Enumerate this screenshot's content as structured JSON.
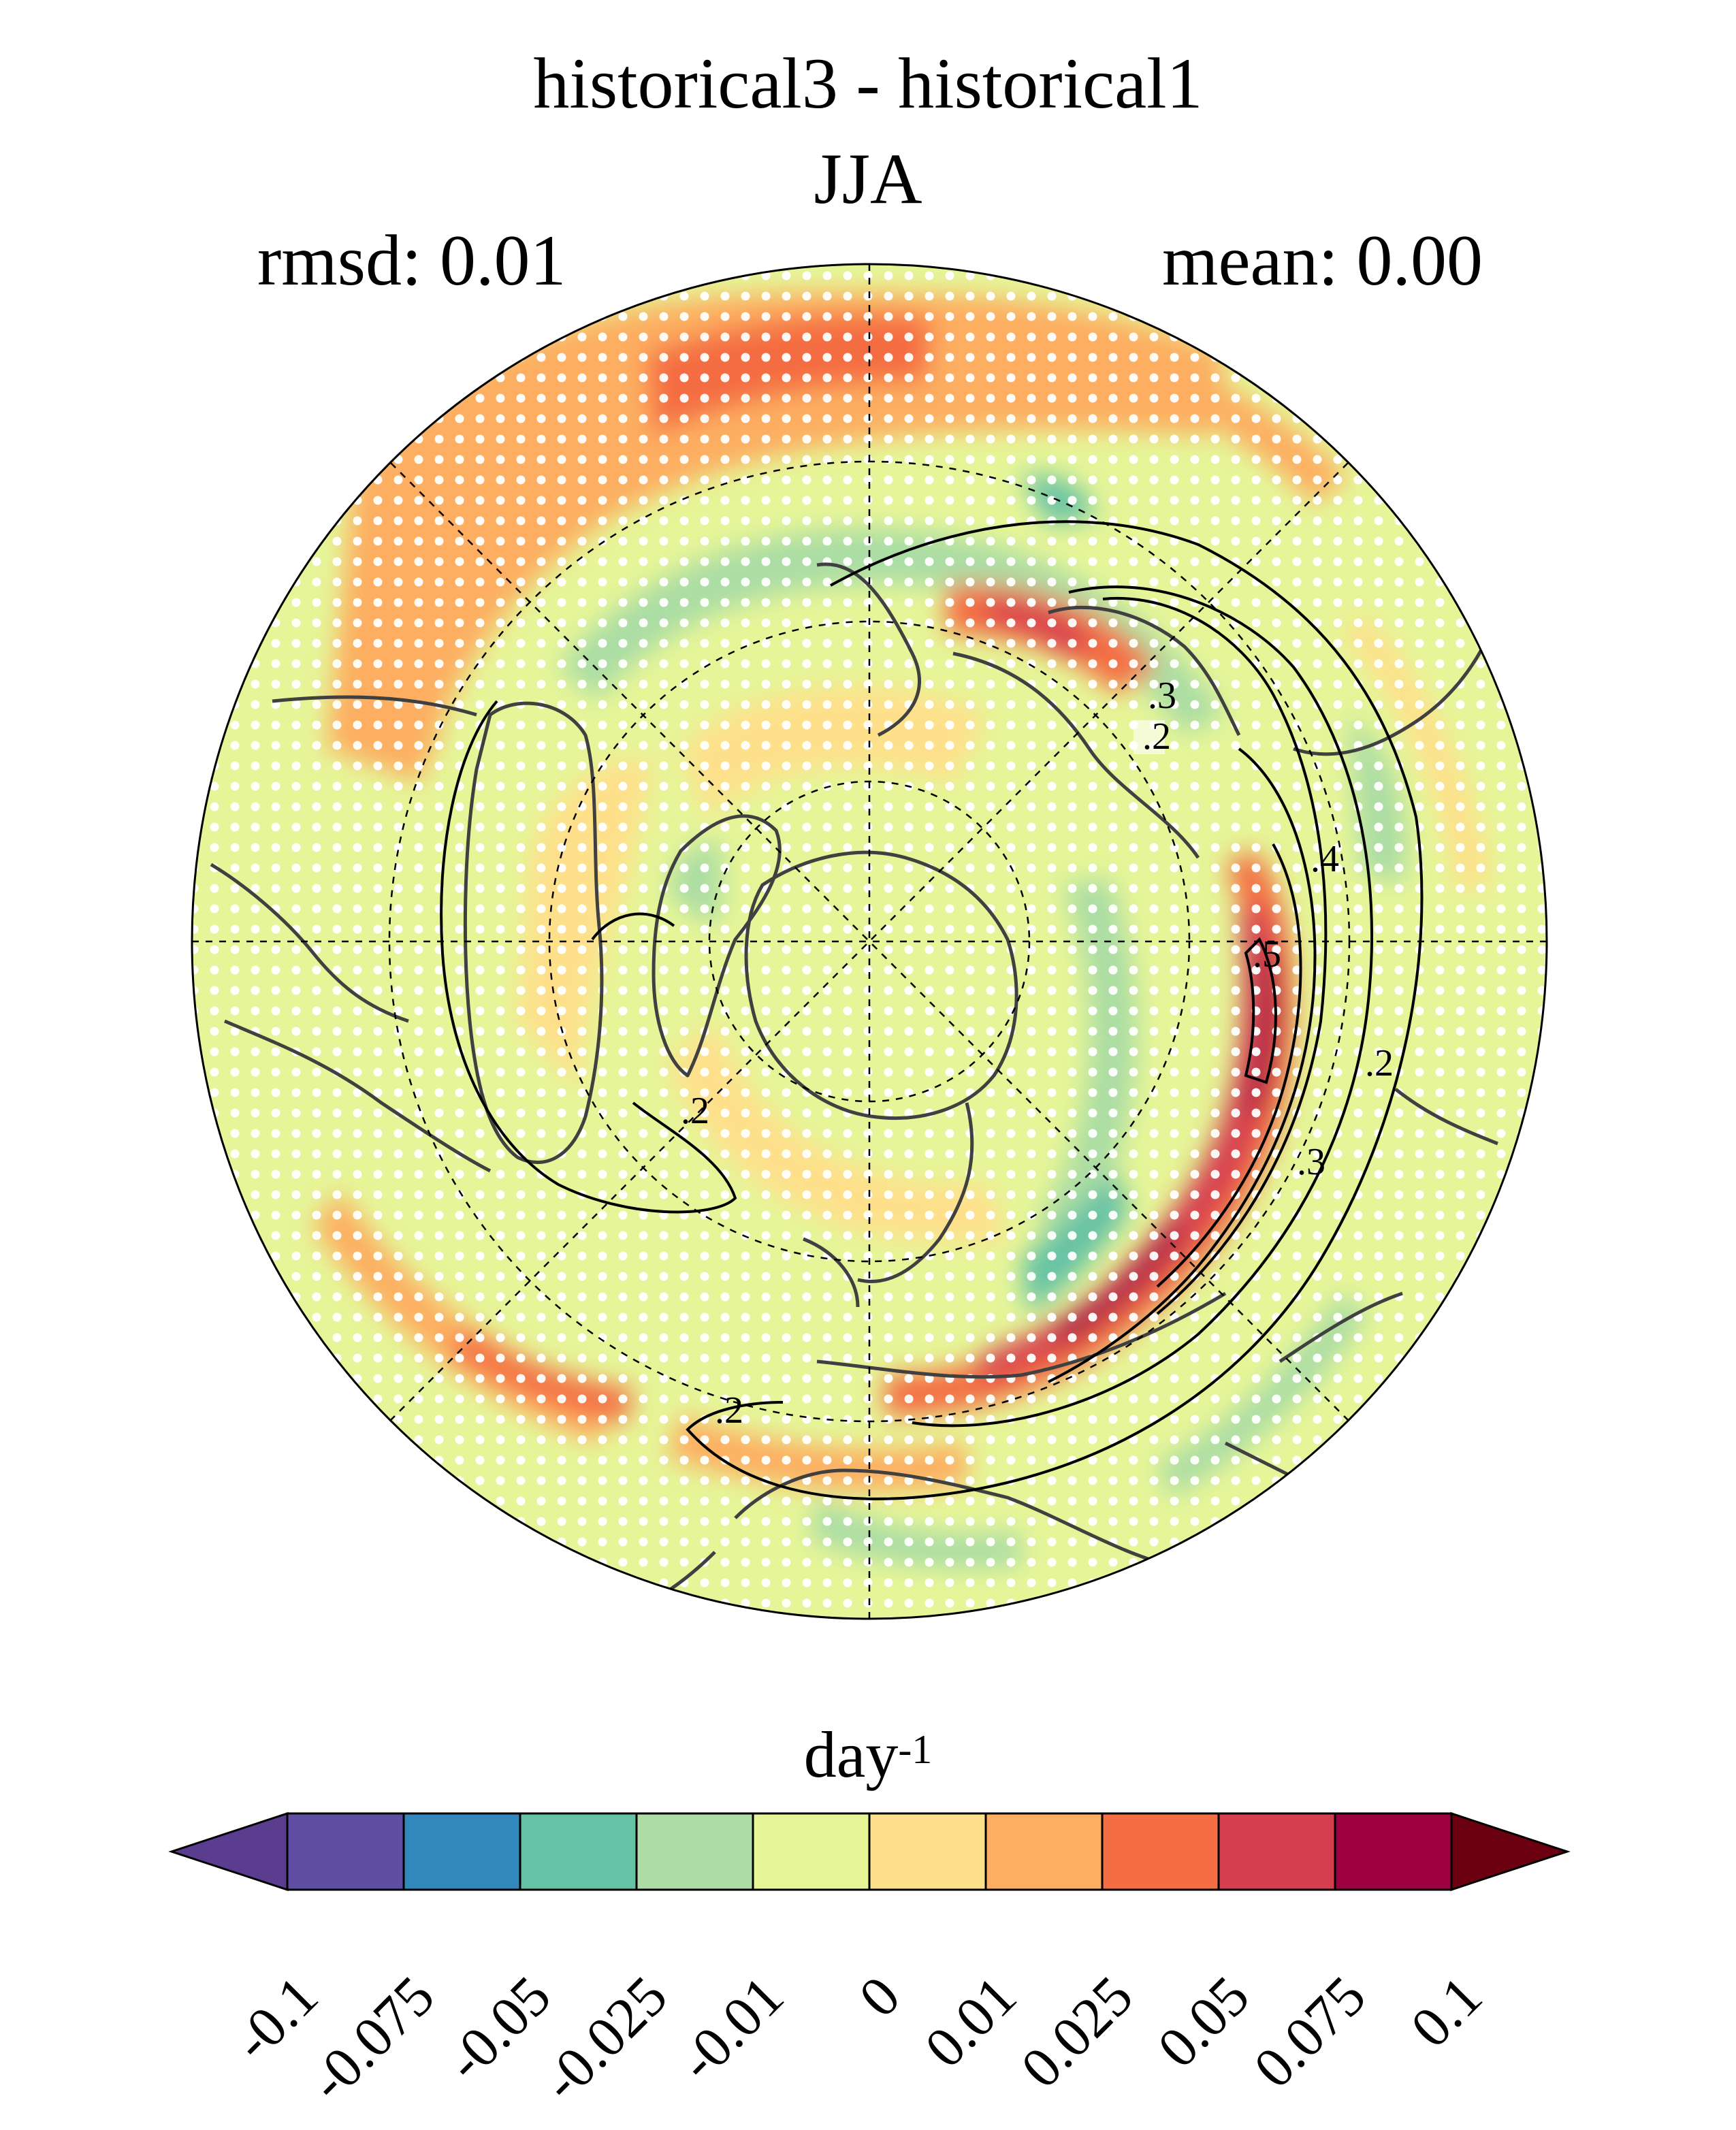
{
  "title": "historical3 - historical1",
  "season": "JJA",
  "stats": {
    "rmsd_label": "rmsd: 0.01",
    "mean_label": "mean: 0.00"
  },
  "colorbar": {
    "unit_base": "day",
    "unit_exponent": "-1",
    "levels": [
      "-0.1",
      "-0.075",
      "-0.05",
      "-0.025",
      "-0.01",
      "0",
      "0.01",
      "0.025",
      "0.05",
      "0.075",
      "0.1"
    ],
    "colors": [
      "#5e4fa2",
      "#3288bd",
      "#66c2a5",
      "#abdda4",
      "#e6f598",
      "#fee08b",
      "#fdae61",
      "#f46d43",
      "#d53e4f",
      "#9e0142"
    ],
    "under_color": "#5a3d8f",
    "over_color": "#6b0010"
  },
  "contour_labels": [
    ".2",
    ".3",
    ".4",
    ".5",
    ".2",
    ".2",
    ".2",
    ".3"
  ],
  "map": {
    "projection": "north-polar-stereographic",
    "stippling": "white dots",
    "background_color": "#e6f598"
  }
}
